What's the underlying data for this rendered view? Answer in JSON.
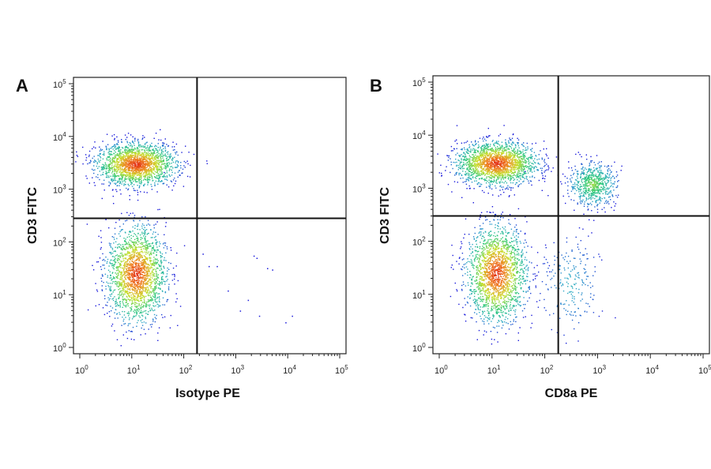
{
  "chart_data": [
    {
      "type": "scatter",
      "panel_label": "A",
      "xlabel": "Isotype PE",
      "ylabel": "CD3 FITC",
      "x_scale": "log",
      "y_scale": "log",
      "xlim": [
        1,
        100000
      ],
      "ylim": [
        1,
        100000
      ],
      "x_ticks": [
        {
          "base": "10",
          "exp": "0"
        },
        {
          "base": "10",
          "exp": "1"
        },
        {
          "base": "10",
          "exp": "2"
        },
        {
          "base": "10",
          "exp": "3"
        },
        {
          "base": "10",
          "exp": "4"
        },
        {
          "base": "10",
          "exp": "5"
        }
      ],
      "y_ticks": [
        {
          "base": "10",
          "exp": "0"
        },
        {
          "base": "10",
          "exp": "1"
        },
        {
          "base": "10",
          "exp": "2"
        },
        {
          "base": "10",
          "exp": "3"
        },
        {
          "base": "10",
          "exp": "4"
        },
        {
          "base": "10",
          "exp": "5"
        }
      ],
      "quadrant_gate": {
        "x": 180,
        "y": 280
      },
      "populations": [
        {
          "center": [
            12,
            3000
          ],
          "density": "high",
          "region": "upper-left",
          "shape": "horizontal-ellipse"
        },
        {
          "center": [
            12,
            25
          ],
          "density": "high",
          "region": "lower-left",
          "shape": "vertical-ellipse"
        }
      ],
      "sparse_events": [
        [
          230,
          60
        ],
        [
          300,
          35
        ],
        [
          430,
          35
        ],
        [
          700,
          12
        ],
        [
          1200,
          5
        ],
        [
          1700,
          8
        ],
        [
          2200,
          55
        ],
        [
          2500,
          50
        ],
        [
          2800,
          4
        ],
        [
          4000,
          32
        ],
        [
          5000,
          30
        ],
        [
          9000,
          3
        ],
        [
          12000,
          4
        ]
      ],
      "color_scale": [
        "#1a1adb",
        "#2ea6c9",
        "#2cc87a",
        "#c8e02a",
        "#f08020",
        "#e02010"
      ],
      "grid": false
    },
    {
      "type": "scatter",
      "panel_label": "B",
      "xlabel": "CD8a PE",
      "ylabel": "CD3 FITC",
      "x_scale": "log",
      "y_scale": "log",
      "xlim": [
        1,
        100000
      ],
      "ylim": [
        1,
        100000
      ],
      "x_ticks": [
        {
          "base": "10",
          "exp": "0"
        },
        {
          "base": "10",
          "exp": "1"
        },
        {
          "base": "10",
          "exp": "2"
        },
        {
          "base": "10",
          "exp": "3"
        },
        {
          "base": "10",
          "exp": "4"
        },
        {
          "base": "10",
          "exp": "5"
        }
      ],
      "y_ticks": [
        {
          "base": "10",
          "exp": "0"
        },
        {
          "base": "10",
          "exp": "1"
        },
        {
          "base": "10",
          "exp": "2"
        },
        {
          "base": "10",
          "exp": "3"
        },
        {
          "base": "10",
          "exp": "4"
        },
        {
          "base": "10",
          "exp": "5"
        }
      ],
      "quadrant_gate": {
        "x": 180,
        "y": 300
      },
      "populations": [
        {
          "center": [
            12,
            3000
          ],
          "density": "high",
          "region": "upper-left",
          "shape": "horizontal-ellipse"
        },
        {
          "center": [
            800,
            1200
          ],
          "density": "medium",
          "region": "upper-right",
          "shape": "ellipse"
        },
        {
          "center": [
            12,
            25
          ],
          "density": "high",
          "region": "lower-left",
          "shape": "vertical-ellipse"
        },
        {
          "center": [
            300,
            15
          ],
          "density": "low",
          "region": "lower-right",
          "shape": "vertical-ellipse"
        }
      ],
      "color_scale": [
        "#1a1adb",
        "#2ea6c9",
        "#2cc87a",
        "#c8e02a",
        "#f08020",
        "#e02010"
      ],
      "grid": false
    }
  ]
}
